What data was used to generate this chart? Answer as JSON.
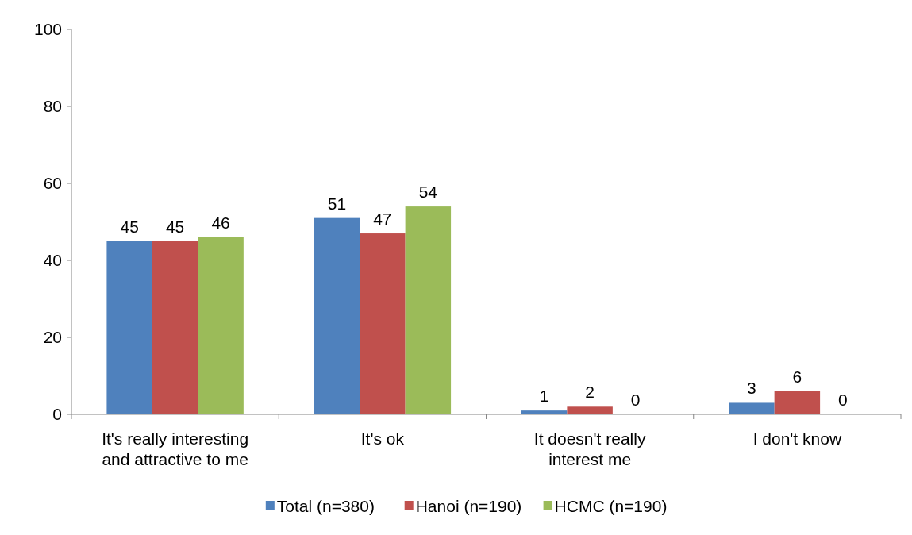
{
  "chart_data": {
    "type": "bar",
    "categories": [
      "It's really interesting and attractive to me",
      "It's ok",
      "It doesn't really interest me",
      "I don't know"
    ],
    "series": [
      {
        "name": "Total (n=380)",
        "color": "#4f81bd",
        "values": [
          45,
          51,
          1,
          3
        ]
      },
      {
        "name": "Hanoi (n=190)",
        "color": "#c0504d",
        "values": [
          45,
          47,
          2,
          6
        ]
      },
      {
        "name": "HCMC (n=190)",
        "color": "#9bbb59",
        "values": [
          46,
          54,
          0,
          0
        ]
      }
    ],
    "ylim": [
      0,
      100
    ],
    "yticks": [
      0,
      20,
      40,
      60,
      80,
      100
    ],
    "data_labels": true,
    "legend": "bottom",
    "grid": false
  }
}
